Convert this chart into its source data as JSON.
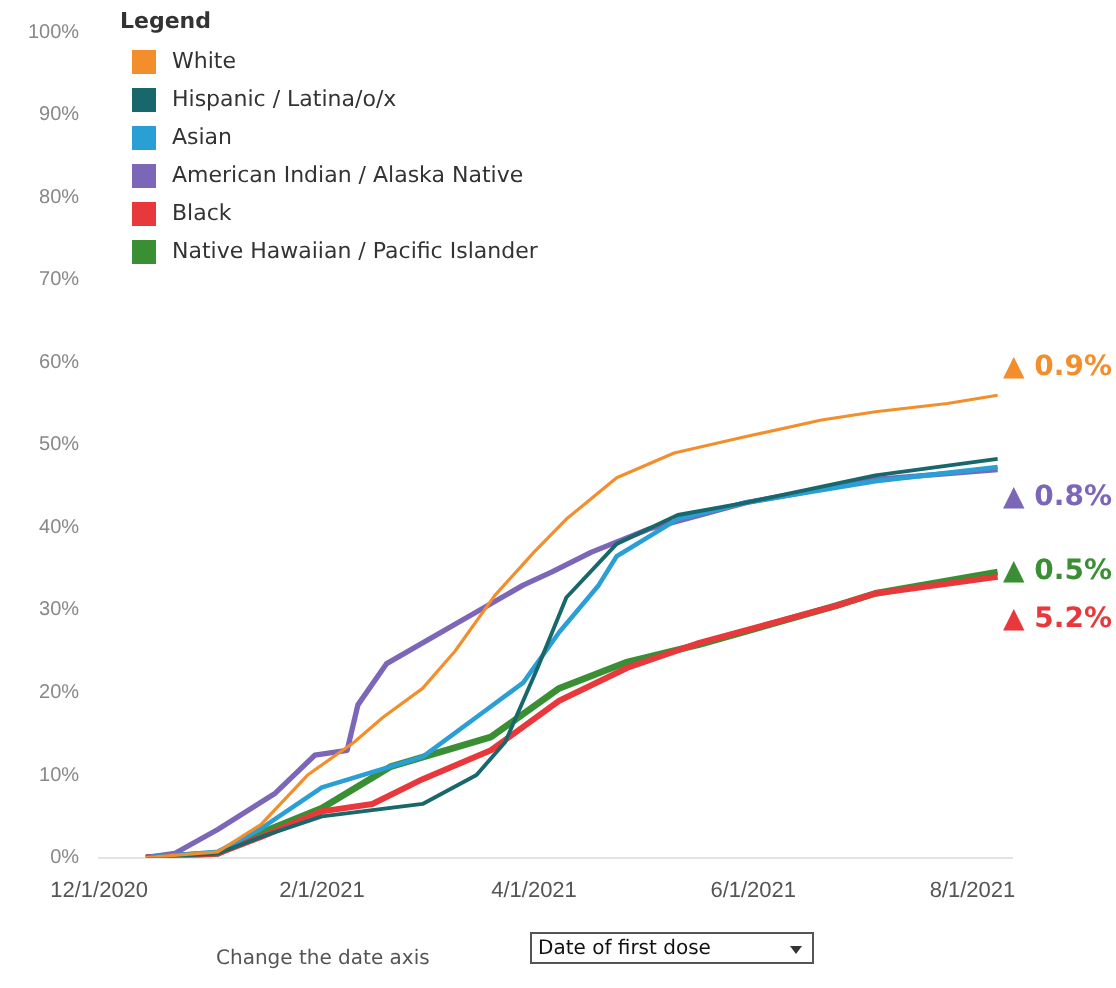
{
  "chart_data": {
    "type": "line",
    "legend_title": "Legend",
    "legend": "top left",
    "grid": false,
    "marker": "none",
    "line_style": "solid",
    "xlim": [
      "2020-12-01",
      "2021-08-12"
    ],
    "xticks": [
      {
        "value": "2020-12-01",
        "label": "12/1/2020"
      },
      {
        "value": "2021-02-01",
        "label": "2/1/2021"
      },
      {
        "value": "2021-04-01",
        "label": "4/1/2021"
      },
      {
        "value": "2021-06-01",
        "label": "6/1/2021"
      },
      {
        "value": "2021-08-01",
        "label": "8/1/2021"
      }
    ],
    "ylim": [
      0,
      100
    ],
    "yticks": [
      {
        "value": 0,
        "label": "0%"
      },
      {
        "value": 10,
        "label": "10%"
      },
      {
        "value": 20,
        "label": "20%"
      },
      {
        "value": 30,
        "label": "30%"
      },
      {
        "value": 40,
        "label": "40%"
      },
      {
        "value": 50,
        "label": "50%"
      },
      {
        "value": 60,
        "label": "60%"
      },
      {
        "value": 70,
        "label": "70%"
      },
      {
        "value": 80,
        "label": "80%"
      },
      {
        "value": 90,
        "label": "90%"
      },
      {
        "value": 100,
        "label": "100%"
      }
    ],
    "series": [
      {
        "name": "White",
        "color": "#f28e2b",
        "x": [
          "2020-12-14",
          "2021-01-03",
          "2021-01-15",
          "2021-01-28",
          "2021-02-10",
          "2021-02-18",
          "2021-03-01",
          "2021-03-10",
          "2021-03-21",
          "2021-04-01",
          "2021-04-10",
          "2021-04-24",
          "2021-05-10",
          "2021-05-30",
          "2021-06-20",
          "2021-07-05",
          "2021-07-25",
          "2021-08-08"
        ],
        "values": [
          0,
          0.7,
          4,
          10,
          14,
          17,
          20.5,
          25,
          31.7,
          37,
          41,
          46,
          49,
          51,
          53,
          54,
          55,
          56
        ]
      },
      {
        "name": "Hispanic / Latina/o/x",
        "color": "#17676b",
        "x": [
          "2020-12-14",
          "2021-01-03",
          "2021-01-15",
          "2021-02-01",
          "2021-03-01",
          "2021-03-16",
          "2021-03-24",
          "2021-04-02",
          "2021-04-10",
          "2021-04-24",
          "2021-05-11",
          "2021-05-30",
          "2021-07-05",
          "2021-08-08"
        ],
        "values": [
          0,
          0.5,
          2.5,
          5,
          6.5,
          10,
          14,
          23,
          31.5,
          38,
          41.5,
          43,
          46.3,
          48.3
        ]
      },
      {
        "name": "Asian",
        "color": "#2a9fd6",
        "x": [
          "2020-12-14",
          "2021-01-03",
          "2021-01-15",
          "2021-02-01",
          "2021-03-01",
          "2021-03-20",
          "2021-03-29",
          "2021-04-08",
          "2021-04-19",
          "2021-04-24",
          "2021-05-11",
          "2021-05-30",
          "2021-07-05",
          "2021-08-08"
        ],
        "values": [
          0,
          0.7,
          3.5,
          8.5,
          12.2,
          18.3,
          21.2,
          27.3,
          33,
          36.5,
          41,
          43,
          45.6,
          47.3
        ]
      },
      {
        "name": "American Indian / Alaska Native",
        "color": "#7b66b8",
        "x": [
          "2020-12-14",
          "2020-12-22",
          "2021-01-03",
          "2021-01-19",
          "2021-01-30",
          "2021-02-08",
          "2021-02-11",
          "2021-02-19",
          "2021-03-11",
          "2021-03-29",
          "2021-04-06",
          "2021-04-17",
          "2021-05-03",
          "2021-05-30",
          "2021-07-05",
          "2021-08-08"
        ],
        "values": [
          0,
          0.5,
          3.4,
          7.8,
          12.4,
          13,
          18.5,
          23.5,
          28.5,
          33,
          34.6,
          37,
          39.8,
          43,
          45.8,
          47
        ]
      },
      {
        "name": "Black",
        "color": "#e8383b",
        "x": [
          "2020-12-14",
          "2021-01-03",
          "2021-01-15",
          "2021-02-01",
          "2021-02-15",
          "2021-03-01",
          "2021-03-20",
          "2021-04-08",
          "2021-04-27",
          "2021-05-17",
          "2021-06-24",
          "2021-07-05",
          "2021-08-08"
        ],
        "values": [
          0,
          0.5,
          2.5,
          5.6,
          6.5,
          9.5,
          13,
          19,
          23,
          26,
          30.5,
          32,
          34
        ]
      },
      {
        "name": "Native Hawaiian / Pacific Islander",
        "color": "#3a8f35",
        "x": [
          "2020-12-14",
          "2021-01-03",
          "2021-01-15",
          "2021-02-01",
          "2021-02-20",
          "2021-03-20",
          "2021-04-08",
          "2021-04-27",
          "2021-05-17",
          "2021-06-24",
          "2021-07-05",
          "2021-08-08"
        ],
        "values": [
          0,
          0.5,
          3,
          6,
          11,
          14.6,
          20.5,
          23.7,
          25.8,
          30.5,
          32,
          34.6
        ]
      }
    ],
    "annotations": [
      {
        "text": "▲ 0.9%",
        "x": "2021-08-08",
        "y": 56
      },
      {
        "text": "▲ 0.8%",
        "x": "2021-08-08",
        "y": 47
      },
      {
        "text": "▲ 0.5%",
        "x": "2021-08-08",
        "y": 34.6
      },
      {
        "text": "▲ 5.2%",
        "x": "2021-08-08",
        "y": 34
      },
      "Change the date axis",
      "Date of first dose"
    ]
  }
}
